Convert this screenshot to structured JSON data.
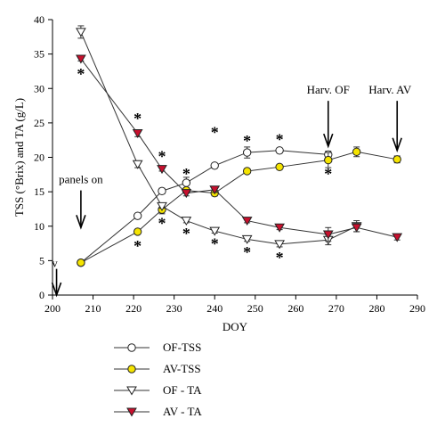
{
  "chart_data": {
    "type": "line",
    "xlabel": "DOY",
    "ylabel": "TSS (°Brix) and TA (g/L)",
    "xlim": [
      200,
      290
    ],
    "ylim": [
      0,
      40
    ],
    "xticks": [
      200,
      210,
      220,
      230,
      240,
      250,
      260,
      270,
      280,
      290
    ],
    "yticks": [
      0,
      5,
      10,
      15,
      20,
      25,
      30,
      35,
      40
    ],
    "grid": false,
    "legend_position": "bottom-center",
    "series": [
      {
        "name": "OF-TSS",
        "marker": "circle",
        "fill": "#ffffff",
        "x": [
          207,
          221,
          227,
          233,
          240,
          248,
          256,
          268
        ],
        "y": [
          4.7,
          11.5,
          15.1,
          16.3,
          18.8,
          20.7,
          21.0,
          20.4
        ],
        "err": [
          0.2,
          0.3,
          0.4,
          0.8,
          0.3,
          0.8,
          0.3,
          0.5
        ]
      },
      {
        "name": "AV-TSS",
        "marker": "circle",
        "fill": "#f5e400",
        "x": [
          207,
          221,
          227,
          233,
          240,
          248,
          256,
          268,
          275,
          285
        ],
        "y": [
          4.7,
          9.2,
          12.4,
          15.2,
          14.8,
          18.0,
          18.6,
          19.6,
          20.8,
          19.7
        ],
        "err": [
          0.2,
          0.3,
          0.6,
          0.4,
          0.4,
          0.3,
          0.3,
          1.1,
          0.7,
          0.5
        ]
      },
      {
        "name": "OF - TA",
        "marker": "triangle-down",
        "fill": "#ffffff",
        "x": [
          207,
          221,
          227,
          233,
          240,
          248,
          256,
          268,
          275
        ],
        "y": [
          38.2,
          19.0,
          12.9,
          10.8,
          9.3,
          8.1,
          7.4,
          8.0,
          10.0
        ],
        "err": [
          0.9,
          0.5,
          0.3,
          0.3,
          0.3,
          0.3,
          0.4,
          0.7,
          0.8
        ]
      },
      {
        "name": "AV - TA",
        "marker": "triangle-down",
        "fill": "#c8102e",
        "x": [
          207,
          221,
          227,
          233,
          240,
          248,
          256,
          268,
          275,
          285
        ],
        "y": [
          34.3,
          23.5,
          18.3,
          14.8,
          15.3,
          10.8,
          9.8,
          8.8,
          9.8,
          8.4
        ],
        "err": [
          0.3,
          0.5,
          0.3,
          0.4,
          0.4,
          0.3,
          0.3,
          1.0,
          0.6,
          0.4
        ]
      }
    ],
    "significance": [
      {
        "x": 207,
        "y": 32.5
      },
      {
        "x": 221,
        "y": 26.0
      },
      {
        "x": 221,
        "y": 7.5
      },
      {
        "x": 227,
        "y": 20.5
      },
      {
        "x": 227,
        "y": 10.8
      },
      {
        "x": 233,
        "y": 18.0
      },
      {
        "x": 233,
        "y": 9.3
      },
      {
        "x": 240,
        "y": 24.0
      },
      {
        "x": 240,
        "y": 7.8
      },
      {
        "x": 248,
        "y": 22.8
      },
      {
        "x": 248,
        "y": 6.6
      },
      {
        "x": 256,
        "y": 23.0
      },
      {
        "x": 256,
        "y": 5.8
      },
      {
        "x": 268,
        "y": 18.0
      }
    ],
    "annotations": [
      {
        "label": "v",
        "arrow_x": 201,
        "arrow_from_y": 3.8,
        "arrow_to_y": 0
      },
      {
        "label": "panels on",
        "arrow_x": 207,
        "arrow_from_y": 15.2,
        "arrow_to_y": 9.8
      },
      {
        "label": "Harv. OF",
        "arrow_x": 268,
        "arrow_from_y": 28.2,
        "arrow_to_y": 21.6
      },
      {
        "label": "Harv. AV",
        "arrow_x": 285,
        "arrow_from_y": 28.2,
        "arrow_to_y": 21.0
      }
    ]
  }
}
